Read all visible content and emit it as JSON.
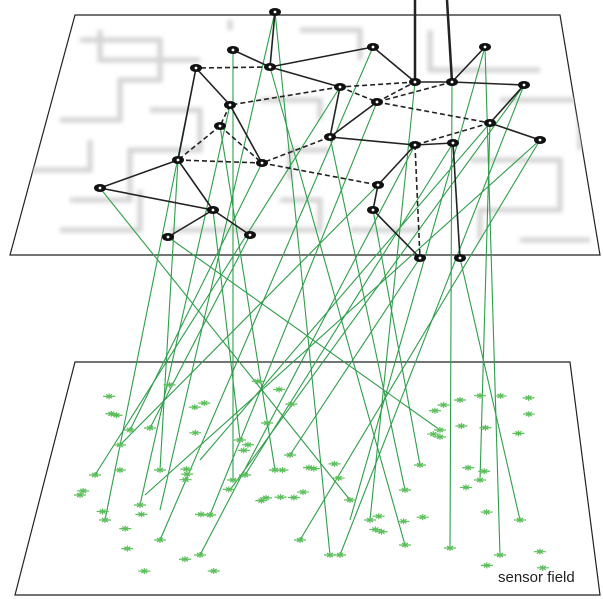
{
  "label": "sensor field"
}
